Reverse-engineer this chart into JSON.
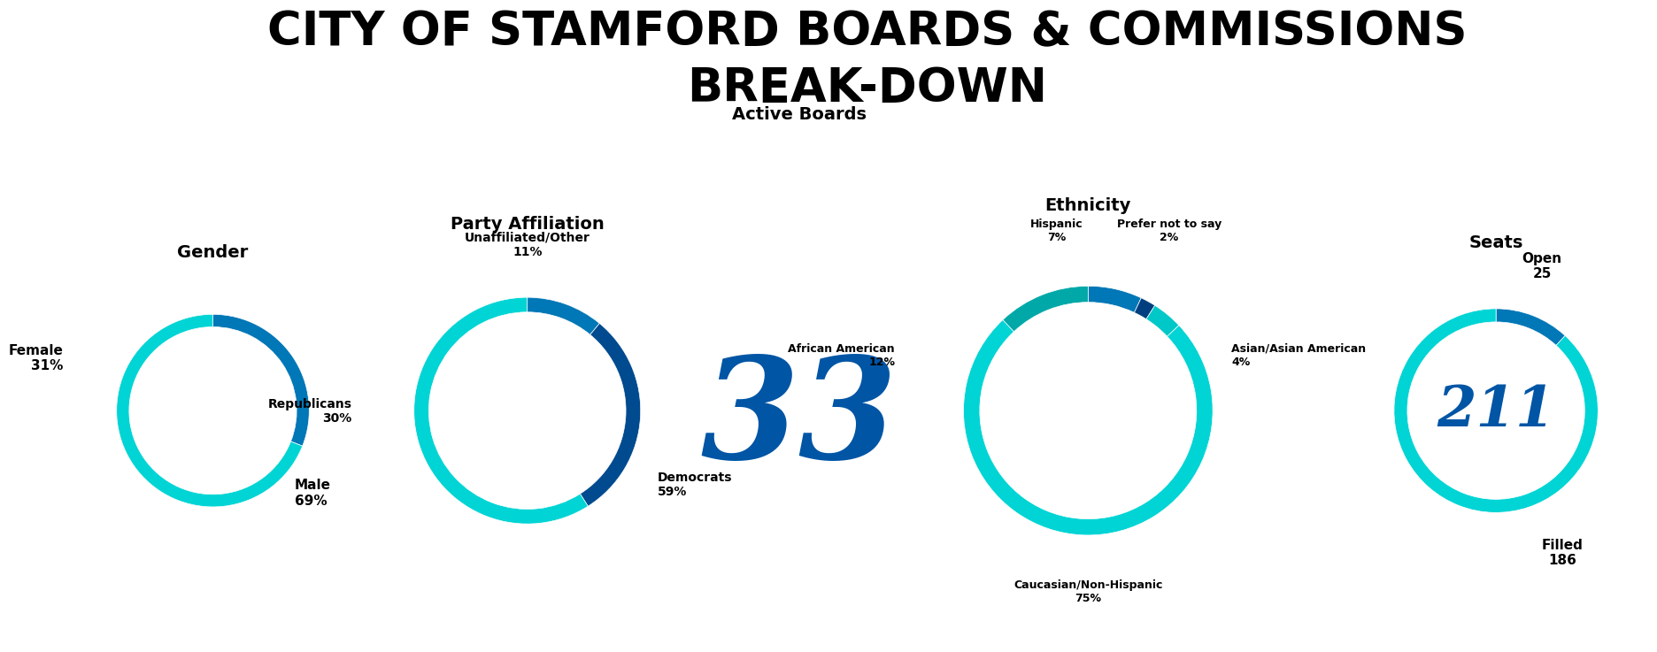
{
  "title": "CITY OF STAMFORD BOARDS & COMMISSIONS\nBREAK-DOWN",
  "title_fontsize": 38,
  "background_color": "#ffffff",
  "gender": {
    "title": "Gender",
    "values": [
      31,
      69
    ],
    "colors": [
      "#0077b6",
      "#00d4d4"
    ],
    "labels": [
      "Female\n31%",
      "Male\n69%"
    ]
  },
  "party": {
    "title": "Party Affiliation",
    "values": [
      11,
      30,
      59
    ],
    "colors": [
      "#0077b6",
      "#004a8f",
      "#00d4d4"
    ],
    "labels": [
      "Unaffiliated/Other\n11%",
      "Republicans\n30%",
      "Democrats\n59%"
    ]
  },
  "active_boards": {
    "title": "Active Boards",
    "number": "33",
    "color": "#0055a5"
  },
  "ethnicity": {
    "title": "Ethnicity",
    "values": [
      7,
      2,
      4,
      75,
      12
    ],
    "colors": [
      "#0077b6",
      "#003f7f",
      "#00c8c8",
      "#00d4d4",
      "#00a8a8"
    ],
    "labels": [
      "Hispanic\n7%",
      "Prefer not to say\n2%",
      "Asian/Asian American\n4%",
      "Caucasian/Non-Hispanic\n75%",
      "African American\n12%"
    ]
  },
  "seats": {
    "title": "Seats",
    "number": "211",
    "number_color": "#0055a5",
    "values": [
      25,
      186
    ],
    "colors": [
      "#0077b6",
      "#00d4d4"
    ],
    "open_label": "Open\n25",
    "filled_label": "Filled\n186"
  }
}
